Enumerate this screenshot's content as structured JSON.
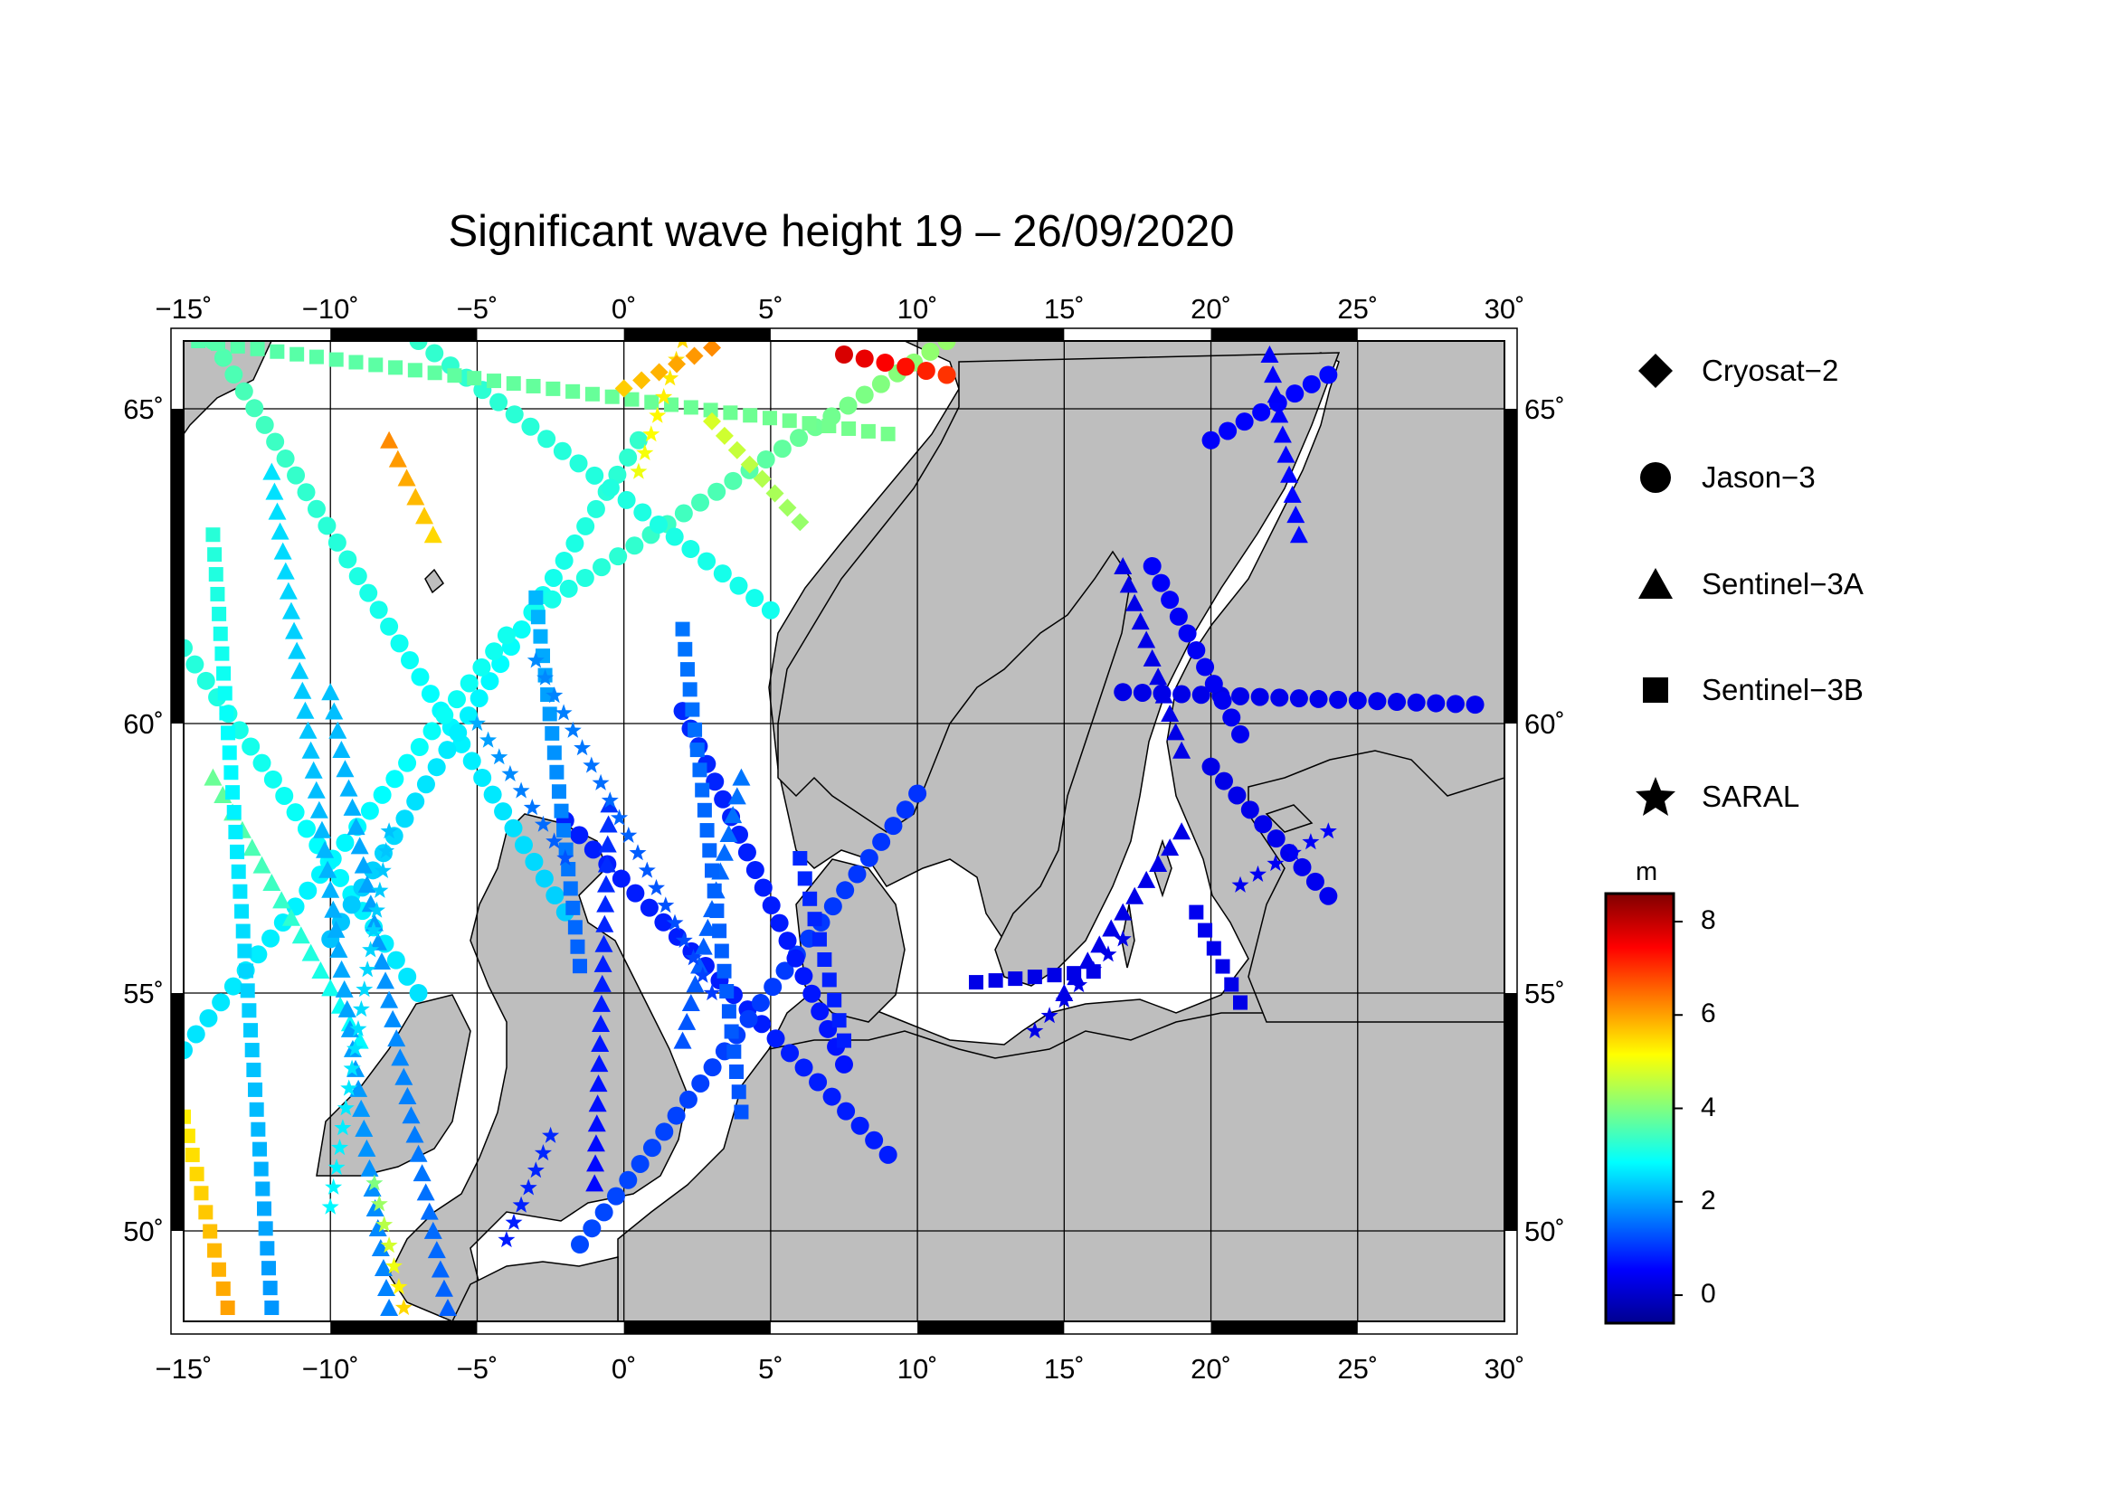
{
  "title": "Significant wave height 19 – 26/09/2020",
  "map": {
    "lon_range": [
      -15,
      30
    ],
    "lat_range": [
      48,
      66
    ],
    "lon_ticks": [
      -15,
      -10,
      -5,
      0,
      5,
      10,
      15,
      20,
      25,
      30
    ],
    "lat_ticks": [
      50,
      55,
      60,
      65
    ],
    "lon_tick_labels": [
      "−15˚",
      "−10˚",
      "−5˚",
      "0˚",
      "5˚",
      "10˚",
      "15˚",
      "20˚",
      "25˚",
      "30˚"
    ],
    "lat_tick_labels": [
      "50˚",
      "55˚",
      "60˚",
      "65˚"
    ],
    "land_color": "#bebebe",
    "sea_color": "#ffffff",
    "grid": true
  },
  "legend": [
    {
      "label": "Cryosat−2",
      "icon": "diamond-icon"
    },
    {
      "label": "Jason−3",
      "icon": "circle-icon"
    },
    {
      "label": "Sentinel−3A",
      "icon": "triangle-icon"
    },
    {
      "label": "Sentinel−3B",
      "icon": "square-icon"
    },
    {
      "label": "SARAL",
      "icon": "star-icon"
    }
  ],
  "colorbar": {
    "unit": "m",
    "min": -0.6,
    "max": 8.6,
    "ticks": [
      0,
      2,
      4,
      6,
      8
    ],
    "tick_labels": [
      "0",
      "2",
      "4",
      "6",
      "8"
    ],
    "colormap": [
      "#00008f",
      "#0000ff",
      "#0080ff",
      "#00ffff",
      "#80ff80",
      "#ffff00",
      "#ff8000",
      "#ff0000",
      "#800000"
    ]
  },
  "tracks": [
    {
      "sat": "Jason−3",
      "shape": "circle",
      "from": [
        -15,
        61.2
      ],
      "to": [
        -7,
        55.0
      ],
      "hs": [
        3.2,
        2.6
      ]
    },
    {
      "sat": "Jason−3",
      "shape": "circle",
      "from": [
        -14,
        66
      ],
      "to": [
        -2,
        56.5
      ],
      "hs": [
        3.6,
        2.4
      ]
    },
    {
      "sat": "Jason−3",
      "shape": "circle",
      "from": [
        -10,
        56
      ],
      "to": [
        0.5,
        64.5
      ],
      "hs": [
        2.3,
        3.3
      ]
    },
    {
      "sat": "Jason−3",
      "shape": "circle",
      "from": [
        -15,
        53.8
      ],
      "to": [
        -4,
        61.4
      ],
      "hs": [
        2.6,
        3.0
      ]
    },
    {
      "sat": "Jason−3",
      "shape": "circle",
      "from": [
        -3,
        61.8
      ],
      "to": [
        11,
        66
      ],
      "hs": [
        3.0,
        4.2
      ]
    },
    {
      "sat": "Jason−3",
      "shape": "circle",
      "from": [
        -7,
        66
      ],
      "to": [
        5,
        61.8
      ],
      "hs": [
        3.3,
        3.0
      ]
    },
    {
      "sat": "Jason−3",
      "shape": "circle",
      "from": [
        -2,
        58.2
      ],
      "to": [
        9,
        51.6
      ],
      "hs": [
        0.8,
        0.8
      ]
    },
    {
      "sat": "Jason−3",
      "shape": "circle",
      "from": [
        -1.5,
        49.7
      ],
      "to": [
        10,
        58.7
      ],
      "hs": [
        1.2,
        1.0
      ]
    },
    {
      "sat": "Jason−3",
      "shape": "circle",
      "from": [
        2,
        60.2
      ],
      "to": [
        7.5,
        53.5
      ],
      "hs": [
        0.9,
        0.7
      ]
    },
    {
      "sat": "Jason−3",
      "shape": "circle",
      "from": [
        20,
        59.2
      ],
      "to": [
        24,
        56.8
      ],
      "hs": [
        0.3,
        0.4
      ]
    },
    {
      "sat": "Jason−3",
      "shape": "circle",
      "from": [
        17,
        60.5
      ],
      "to": [
        29,
        60.3
      ],
      "hs": [
        0.3,
        0.4
      ]
    },
    {
      "sat": "Jason−3",
      "shape": "circle",
      "from": [
        18,
        62.5
      ],
      "to": [
        21,
        59.8
      ],
      "hs": [
        0.5,
        0.4
      ]
    },
    {
      "sat": "Jason−3",
      "shape": "circle",
      "from": [
        20,
        64.5
      ],
      "to": [
        24,
        65.5
      ],
      "hs": [
        0.5,
        0.6
      ]
    },
    {
      "sat": "Jason−3",
      "shape": "circle",
      "from": [
        7.5,
        65.8
      ],
      "to": [
        11,
        65.5
      ],
      "hs": [
        7.8,
        7.0
      ]
    },
    {
      "sat": "Sentinel−3A",
      "shape": "triangle",
      "from": [
        -14,
        59
      ],
      "to": [
        -9,
        54
      ],
      "hs": [
        3.8,
        2.8
      ]
    },
    {
      "sat": "Sentinel−3A",
      "shape": "triangle",
      "from": [
        -12,
        64
      ],
      "to": [
        -8,
        48.3
      ],
      "hs": [
        2.6,
        1.7
      ]
    },
    {
      "sat": "Sentinel−3A",
      "shape": "triangle",
      "from": [
        -10,
        60.5
      ],
      "to": [
        -6,
        48.3
      ],
      "hs": [
        2.3,
        1.4
      ]
    },
    {
      "sat": "Sentinel−3A",
      "shape": "triangle",
      "from": [
        -8,
        64.5
      ],
      "to": [
        -6.5,
        63
      ],
      "hs": [
        6.2,
        5.5
      ]
    },
    {
      "sat": "Sentinel−3A",
      "shape": "triangle",
      "from": [
        2,
        54
      ],
      "to": [
        4,
        59
      ],
      "hs": [
        1.3,
        1.6
      ]
    },
    {
      "sat": "Sentinel−3A",
      "shape": "triangle",
      "from": [
        -1,
        51
      ],
      "to": [
        -0.5,
        58.5
      ],
      "hs": [
        0.6,
        1.0
      ]
    },
    {
      "sat": "Sentinel−3A",
      "shape": "triangle",
      "from": [
        17,
        62.5
      ],
      "to": [
        19,
        59.5
      ],
      "hs": [
        0.3,
        0.3
      ]
    },
    {
      "sat": "Sentinel−3A",
      "shape": "triangle",
      "from": [
        22,
        65.8
      ],
      "to": [
        23,
        63
      ],
      "hs": [
        0.5,
        0.6
      ]
    },
    {
      "sat": "Sentinel−3A",
      "shape": "triangle",
      "from": [
        15,
        55
      ],
      "to": [
        19,
        58
      ],
      "hs": [
        0.3,
        0.3
      ]
    },
    {
      "sat": "Sentinel−3B",
      "shape": "square",
      "from": [
        -14,
        63
      ],
      "to": [
        -12,
        48.3
      ],
      "hs": [
        3.2,
        1.9
      ]
    },
    {
      "sat": "Sentinel−3B",
      "shape": "square",
      "from": [
        -3,
        62
      ],
      "to": [
        -1.5,
        55.5
      ],
      "hs": [
        2.2,
        1.4
      ]
    },
    {
      "sat": "Sentinel−3B",
      "shape": "square",
      "from": [
        2,
        61.5
      ],
      "to": [
        4,
        52.5
      ],
      "hs": [
        1.6,
        1.3
      ]
    },
    {
      "sat": "Sentinel−3B",
      "shape": "square",
      "from": [
        6,
        57.5
      ],
      "to": [
        7.5,
        54
      ],
      "hs": [
        0.9,
        0.8
      ]
    },
    {
      "sat": "Sentinel−3B",
      "shape": "square",
      "from": [
        -15,
        52.4
      ],
      "to": [
        -13.5,
        48.3
      ],
      "hs": [
        5.3,
        6.0
      ]
    },
    {
      "sat": "Sentinel−3B",
      "shape": "square",
      "from": [
        19.5,
        56.5
      ],
      "to": [
        21,
        54.8
      ],
      "hs": [
        0.4,
        0.3
      ]
    },
    {
      "sat": "Sentinel−3B",
      "shape": "square",
      "from": [
        12,
        55.2
      ],
      "to": [
        16,
        55.4
      ],
      "hs": [
        0.3,
        0.3
      ]
    },
    {
      "sat": "Sentinel−3B",
      "shape": "square",
      "from": [
        -14.5,
        66
      ],
      "to": [
        9,
        64.6
      ],
      "hs": [
        3.6,
        3.9
      ]
    },
    {
      "sat": "SARAL",
      "shape": "star",
      "from": [
        -3,
        61
      ],
      "to": [
        3,
        55
      ],
      "hs": [
        1.8,
        1.1
      ]
    },
    {
      "sat": "SARAL",
      "shape": "star",
      "from": [
        -5,
        60
      ],
      "to": [
        -2,
        57.5
      ],
      "hs": [
        2.1,
        1.3
      ]
    },
    {
      "sat": "SARAL",
      "shape": "star",
      "from": [
        -8,
        58
      ],
      "to": [
        -10,
        50.5
      ],
      "hs": [
        2.3,
        2.8
      ]
    },
    {
      "sat": "SARAL",
      "shape": "star",
      "from": [
        -8.5,
        51
      ],
      "to": [
        -7.5,
        48.3
      ],
      "hs": [
        4.0,
        5.5
      ]
    },
    {
      "sat": "SARAL",
      "shape": "star",
      "from": [
        21,
        57
      ],
      "to": [
        24,
        58
      ],
      "hs": [
        0.4,
        0.5
      ]
    },
    {
      "sat": "SARAL",
      "shape": "star",
      "from": [
        14,
        54.2
      ],
      "to": [
        17,
        56
      ],
      "hs": [
        0.3,
        0.3
      ]
    },
    {
      "sat": "SARAL",
      "shape": "star",
      "from": [
        -4,
        49.8
      ],
      "to": [
        -2.5,
        52
      ],
      "hs": [
        0.8,
        0.9
      ]
    },
    {
      "sat": "SARAL",
      "shape": "star",
      "from": [
        2,
        66
      ],
      "to": [
        0.5,
        64
      ],
      "hs": [
        5.5,
        5.0
      ]
    },
    {
      "sat": "Cryosat−2",
      "shape": "diamond",
      "from": [
        3,
        64.8
      ],
      "to": [
        6,
        63.2
      ],
      "hs": [
        4.8,
        4.2
      ]
    },
    {
      "sat": "Cryosat−2",
      "shape": "diamond",
      "from": [
        0,
        65.3
      ],
      "to": [
        3,
        65.9
      ],
      "hs": [
        5.6,
        6.2
      ]
    }
  ]
}
